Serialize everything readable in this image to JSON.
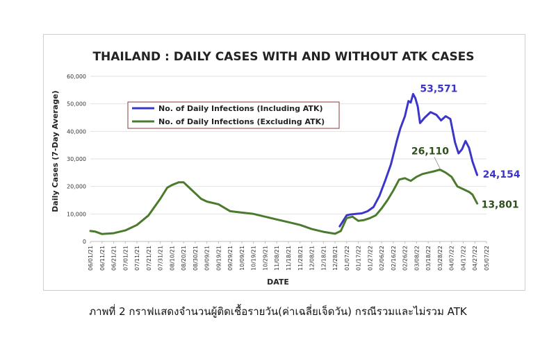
{
  "caption": "ภาพที่ 2 กราฟแสดงจำนวนผู้ติดเชื้อรายวัน(ค่าเฉลี่ยเจ็ดวัน) กรณีรวมและไม่รวม ATK",
  "chart_data": {
    "type": "line",
    "title": "THAILAND : DAILY CASES WITH AND WITHOUT ATK CASES",
    "xlabel": "DATE",
    "ylabel": "Daily Cases (7-Day Average)",
    "ylim": [
      0,
      60000
    ],
    "yticks": [
      "0",
      "10,000",
      "20,000",
      "30,000",
      "40,000",
      "50,000",
      "60,000"
    ],
    "xticks": [
      "06/01/21",
      "06/11/21",
      "06/21/21",
      "07/01/21",
      "07/11/21",
      "07/21/21",
      "07/31/21",
      "08/10/21",
      "08/20/21",
      "08/30/21",
      "09/09/21",
      "09/19/21",
      "09/29/21",
      "10/09/21",
      "10/19/21",
      "10/29/21",
      "11/08/21",
      "11/18/21",
      "11/28/21",
      "12/08/21",
      "12/18/21",
      "12/28/21",
      "01/07/22",
      "01/17/22",
      "01/27/22",
      "02/06/22",
      "02/16/22",
      "02/26/22",
      "03/08/22",
      "03/18/22",
      "03/28/22",
      "04/07/22",
      "04/17/22",
      "04/27/22",
      "05/07/22"
    ],
    "grid": true,
    "legend_position": "top-left",
    "series": [
      {
        "name": "No. of Daily Infections (Including ATK)",
        "color": "#3b35c8",
        "x": [
          "2022-01-01",
          "2022-01-04",
          "2022-01-07",
          "2022-01-10",
          "2022-01-15",
          "2022-01-20",
          "2022-01-25",
          "2022-01-30",
          "2022-02-04",
          "2022-02-09",
          "2022-02-14",
          "2022-02-19",
          "2022-02-22",
          "2022-02-26",
          "2022-03-01",
          "2022-03-03",
          "2022-03-05",
          "2022-03-07",
          "2022-03-09",
          "2022-03-11",
          "2022-03-15",
          "2022-03-20",
          "2022-03-25",
          "2022-03-29",
          "2022-04-02",
          "2022-04-06",
          "2022-04-10",
          "2022-04-13",
          "2022-04-16",
          "2022-04-19",
          "2022-04-22",
          "2022-04-25",
          "2022-04-29"
        ],
        "y": [
          5500,
          7500,
          9500,
          9800,
          10000,
          10200,
          11000,
          12500,
          16500,
          22000,
          28000,
          36500,
          41000,
          45500,
          51000,
          50500,
          53571,
          52000,
          49000,
          43000,
          45000,
          47000,
          46000,
          44000,
          45500,
          44500,
          36000,
          32000,
          33500,
          36500,
          34000,
          29000,
          24154
        ]
      },
      {
        "name": "No. of Daily Infections (Excluding ATK)",
        "color": "#4a7a2c",
        "x": [
          "2021-06-01",
          "2021-06-05",
          "2021-06-11",
          "2021-06-21",
          "2021-07-01",
          "2021-07-11",
          "2021-07-21",
          "2021-07-31",
          "2021-08-06",
          "2021-08-10",
          "2021-08-16",
          "2021-08-20",
          "2021-08-25",
          "2021-08-30",
          "2021-09-04",
          "2021-09-09",
          "2021-09-19",
          "2021-09-29",
          "2021-10-09",
          "2021-10-19",
          "2021-10-29",
          "2021-11-08",
          "2021-11-18",
          "2021-11-28",
          "2021-12-08",
          "2021-12-18",
          "2021-12-28",
          "2022-01-02",
          "2022-01-07",
          "2022-01-12",
          "2022-01-17",
          "2022-01-22",
          "2022-01-27",
          "2022-02-01",
          "2022-02-06",
          "2022-02-11",
          "2022-02-16",
          "2022-02-21",
          "2022-02-26",
          "2022-03-03",
          "2022-03-08",
          "2022-03-13",
          "2022-03-18",
          "2022-03-23",
          "2022-03-28",
          "2022-04-02",
          "2022-04-07",
          "2022-04-12",
          "2022-04-17",
          "2022-04-22",
          "2022-04-25",
          "2022-04-29"
        ],
        "y": [
          3800,
          3600,
          2700,
          3000,
          4000,
          6000,
          9500,
          15500,
          19500,
          20500,
          21500,
          21500,
          19500,
          17500,
          15500,
          14500,
          13500,
          11000,
          10500,
          10000,
          9000,
          8000,
          7000,
          6000,
          4500,
          3500,
          2800,
          3800,
          8500,
          9000,
          7500,
          7800,
          8500,
          9500,
          12000,
          15000,
          18500,
          22500,
          23000,
          22000,
          23500,
          24500,
          25000,
          25500,
          26110,
          25000,
          23500,
          20000,
          19000,
          18000,
          17000,
          13801
        ]
      }
    ],
    "annotations": [
      {
        "series": 0,
        "label": "53,571",
        "color": "#3b35c8"
      },
      {
        "series": 0,
        "label": "24,154",
        "color": "#3b35c8"
      },
      {
        "series": 1,
        "label": "26,110",
        "color": "#2f4f1c"
      },
      {
        "series": 1,
        "label": "13,801",
        "color": "#2f4f1c"
      }
    ]
  }
}
